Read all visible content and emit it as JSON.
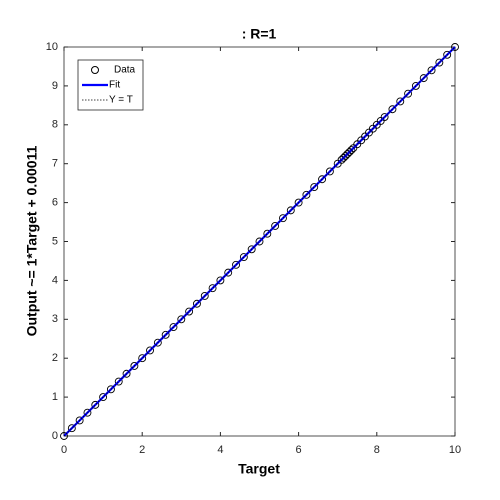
{
  "chart_data": {
    "type": "scatter",
    "title": ": R=1",
    "xlabel": "Target",
    "ylabel": "Output ~= 1*Target + 0.00011",
    "xlim": [
      0,
      10
    ],
    "ylim": [
      0,
      10
    ],
    "xticks": [
      0,
      2,
      4,
      6,
      8,
      10
    ],
    "yticks": [
      0,
      1,
      2,
      3,
      4,
      5,
      6,
      7,
      8,
      9,
      10
    ],
    "grid": false,
    "legend": "northwest",
    "series": [
      {
        "name": "Data",
        "color": "#000000",
        "kind": "marker",
        "x": [
          0,
          0.2,
          0.4,
          0.6,
          0.8,
          1.0,
          1.2,
          1.4,
          1.6,
          1.8,
          2.0,
          2.2,
          2.4,
          2.6,
          2.8,
          3.0,
          3.2,
          3.4,
          3.6,
          3.8,
          4.0,
          4.2,
          4.4,
          4.6,
          4.8,
          5.0,
          5.2,
          5.4,
          5.6,
          5.8,
          6.0,
          6.2,
          6.4,
          6.6,
          6.8,
          7.0,
          7.1,
          7.15,
          7.2,
          7.25,
          7.3,
          7.35,
          7.4,
          7.5,
          7.6,
          7.7,
          7.8,
          7.9,
          8.0,
          8.1,
          8.2,
          8.4,
          8.6,
          8.8,
          9.0,
          9.2,
          9.4,
          9.6,
          9.8,
          10.0
        ],
        "values": [
          0,
          0.2,
          0.4,
          0.6,
          0.8,
          1.0,
          1.2,
          1.4,
          1.6,
          1.8,
          2.0,
          2.2,
          2.4,
          2.6,
          2.8,
          3.0,
          3.2,
          3.4,
          3.6,
          3.8,
          4.0,
          4.2,
          4.4,
          4.6,
          4.8,
          5.0,
          5.2,
          5.4,
          5.6,
          5.8,
          6.0,
          6.2,
          6.4,
          6.6,
          6.8,
          7.0,
          7.1,
          7.15,
          7.2,
          7.25,
          7.3,
          7.35,
          7.4,
          7.5,
          7.6,
          7.7,
          7.8,
          7.9,
          8.0,
          8.1,
          8.2,
          8.4,
          8.6,
          8.8,
          9.0,
          9.2,
          9.4,
          9.6,
          9.8,
          10.0
        ]
      },
      {
        "name": "Fit",
        "color": "#0000ff",
        "kind": "line",
        "x": [
          0,
          10
        ],
        "values": [
          0.00011,
          10.00011
        ]
      },
      {
        "name": "Y = T",
        "color": "#000000",
        "kind": "dotted",
        "x": [
          0,
          10
        ],
        "values": [
          0,
          10
        ]
      }
    ]
  }
}
